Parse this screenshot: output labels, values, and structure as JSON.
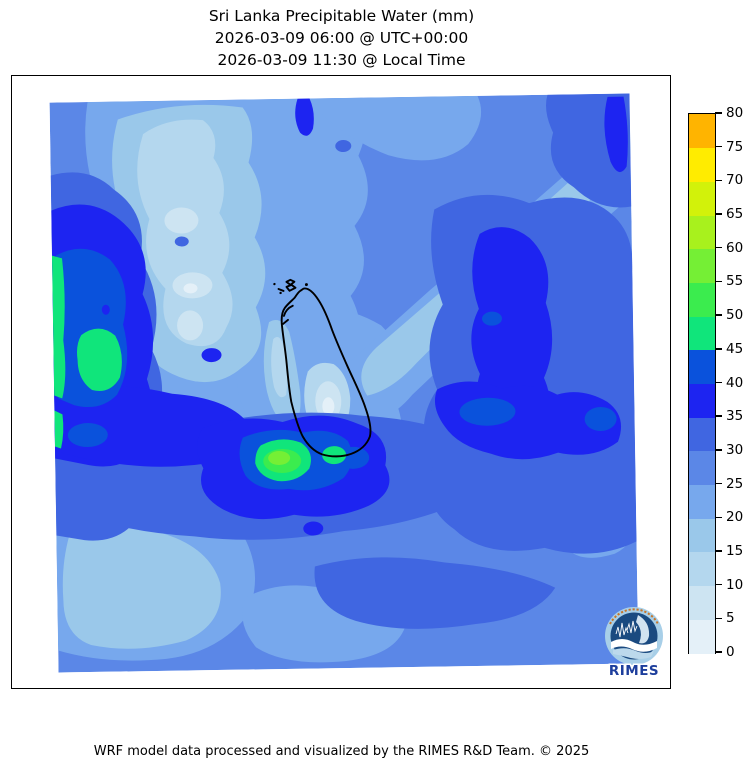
{
  "title": {
    "line1": "Sri Lanka Precipitable Water (mm)",
    "line2": "2026-03-09 06:00 @ UTC+00:00",
    "line3": "2026-03-09 11:30 @ Local Time"
  },
  "footer": {
    "credit": "WRF model data processed and visualized by the RIMES R&D Team. © 2025"
  },
  "logo": {
    "label": "RIMES",
    "ring_color": "#a8cfe8",
    "disk_color": "#1a4a80",
    "text_color": "#1d3e9c",
    "arc_text_color": "#c8762a"
  },
  "chart_data": {
    "type": "heatmap",
    "subtype": "filled-contour-map",
    "title": "Sri Lanka Precipitable Water (mm)",
    "timestamp_utc": "2026-03-09 06:00 @ UTC+00:00",
    "timestamp_local": "2026-03-09 11:30 @ Local Time",
    "variable": "Precipitable Water",
    "units": "mm",
    "legend_position": "right",
    "grid": false,
    "colorbar": {
      "orientation": "vertical",
      "min": 0,
      "max": 80,
      "step": 5,
      "ticks": [
        0,
        5,
        10,
        15,
        20,
        25,
        30,
        35,
        40,
        45,
        50,
        55,
        60,
        65,
        70,
        75,
        80
      ],
      "levels": [
        {
          "from": 0,
          "to": 5,
          "color": "#e4f0f8"
        },
        {
          "from": 5,
          "to": 10,
          "color": "#cde4f2"
        },
        {
          "from": 10,
          "to": 15,
          "color": "#b4d7ee"
        },
        {
          "from": 15,
          "to": 20,
          "color": "#9ac8ea"
        },
        {
          "from": 20,
          "to": 25,
          "color": "#77a8ed"
        },
        {
          "from": 25,
          "to": 30,
          "color": "#5b87e7"
        },
        {
          "from": 30,
          "to": 35,
          "color": "#4066e1"
        },
        {
          "from": 35,
          "to": 40,
          "color": "#1d24f1"
        },
        {
          "from": 40,
          "to": 45,
          "color": "#0a52dc"
        },
        {
          "from": 45,
          "to": 50,
          "color": "#10e57b"
        },
        {
          "from": 50,
          "to": 55,
          "color": "#3bec4e"
        },
        {
          "from": 55,
          "to": 60,
          "color": "#75ef35"
        },
        {
          "from": 60,
          "to": 65,
          "color": "#a8f11d"
        },
        {
          "from": 65,
          "to": 70,
          "color": "#d2f20a"
        },
        {
          "from": 70,
          "to": 75,
          "color": "#ffec00"
        },
        {
          "from": 75,
          "to": 80,
          "color": "#ffb400"
        }
      ]
    },
    "map": {
      "region": "Sri Lanka and surrounding ocean (WRF model domain)",
      "coastline_color": "#000000",
      "background_outside_domain": "#ffffff",
      "field_rotation_deg": -0.9,
      "value_summary": {
        "displayed_range_mm": [
          0,
          60
        ],
        "typical_ocean_values_mm": [
          20,
          40
        ],
        "maxima": [
          {
            "area": "south of Sri Lanka",
            "value_mm": "50-60"
          },
          {
            "area": "west edge of domain",
            "value_mm": "45-50"
          }
        ],
        "minima": [
          {
            "area": "interior of southern Sri Lanka",
            "value_mm": "0-10"
          },
          {
            "area": "upper-middle of domain northwest of island",
            "value_mm": "5-15"
          }
        ]
      }
    }
  }
}
